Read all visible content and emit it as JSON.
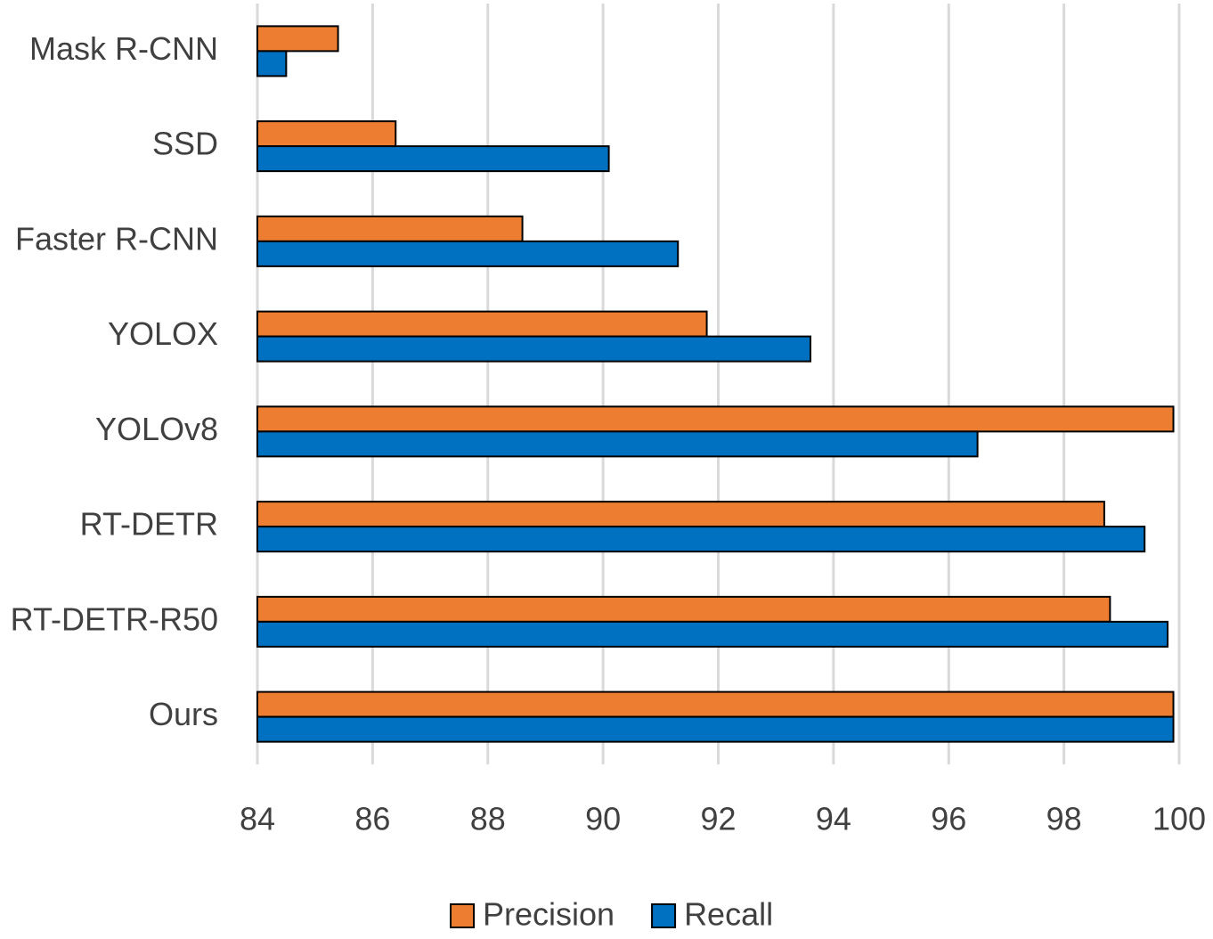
{
  "chart_data": {
    "type": "hbar",
    "categories": [
      "Mask R-CNN",
      "SSD",
      "Faster R-CNN",
      "YOLOX",
      "YOLOv8",
      "RT-DETR",
      "RT-DETR-R50",
      "Ours"
    ],
    "series": [
      {
        "name": "Precision",
        "color": "#ed7d31",
        "values": [
          85.4,
          86.4,
          88.6,
          91.8,
          99.9,
          98.7,
          98.8,
          99.9
        ]
      },
      {
        "name": "Recall",
        "color": "#0070c0",
        "values": [
          84.5,
          90.1,
          91.3,
          93.6,
          96.5,
          99.4,
          99.8,
          99.9
        ]
      }
    ],
    "xlim": [
      84,
      100
    ],
    "xticks": [
      84,
      86,
      88,
      90,
      92,
      94,
      96,
      98,
      100
    ],
    "grid": true,
    "legend": "bottom"
  }
}
